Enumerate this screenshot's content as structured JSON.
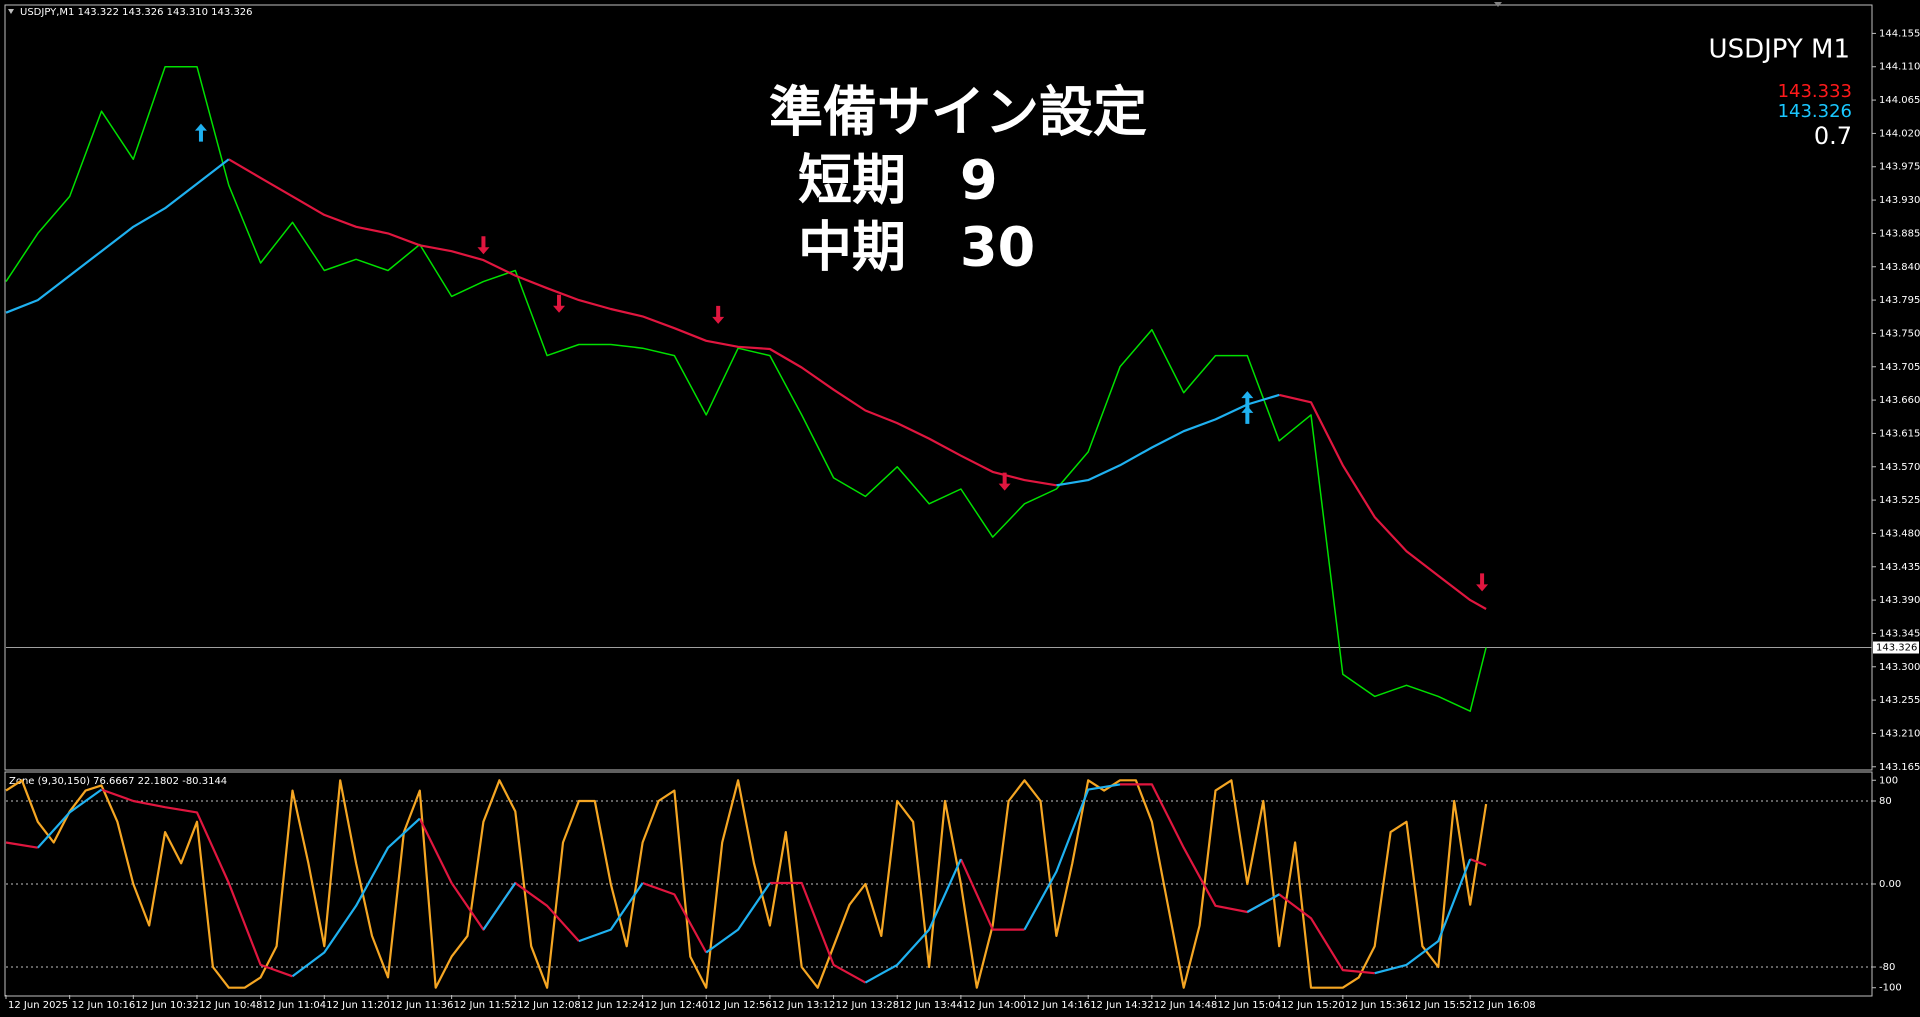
{
  "chart_data": [
    {
      "type": "line",
      "title": "USDJPY,M1 143.322 143.326 143.310 143.326",
      "annotations": [
        "準備サイン設定",
        "短期　9",
        "中期　30"
      ],
      "info_label": "USDJPY M1",
      "info_label_color": "#daa520",
      "info_values": [
        143.333,
        143.326,
        0.7
      ],
      "info_colors": [
        "#ff1a1a",
        "#19c8ff",
        "#ffffff"
      ],
      "price_line": 143.326,
      "xlim": [
        0,
        469
      ],
      "ylim": [
        143.162,
        144.192
      ],
      "yticks": [
        144.155,
        {
          "value": 144.11,
          "label": "144.110"
        },
        144.065,
        {
          "value": 144.02,
          "label": "144.020"
        },
        143.975,
        {
          "value": 143.93,
          "label": "143.930"
        },
        143.885,
        {
          "value": 143.84,
          "label": "143.840"
        },
        143.795,
        {
          "value": 143.75,
          "label": "143.750"
        },
        143.705,
        {
          "value": 143.66,
          "label": "143.660"
        },
        143.615,
        {
          "value": 143.57,
          "label": "143.570"
        },
        143.525,
        {
          "value": 143.48,
          "label": "143.480"
        },
        143.435,
        {
          "value": 143.39,
          "label": "143.390"
        },
        143.345,
        {
          "value": 143.3,
          "label": "143.300"
        },
        143.255,
        {
          "value": 143.21,
          "label": "143.210"
        },
        143.165
      ],
      "x": [
        0,
        8,
        16,
        24,
        32,
        40,
        48,
        56,
        64,
        72,
        80,
        88,
        96,
        104,
        112,
        120,
        128,
        136,
        144,
        152,
        160,
        168,
        176,
        184,
        192,
        200,
        208,
        216,
        224,
        232,
        240,
        248,
        256,
        264,
        272,
        280,
        288,
        296,
        304,
        312,
        320,
        328,
        336,
        344,
        352,
        360,
        368,
        372
      ],
      "series": [
        {
          "color": "#00e000",
          "values": [
            143.82,
            143.885,
            143.935,
            144.05,
            143.985,
            144.11,
            144.11,
            143.95,
            143.845,
            143.9,
            143.835,
            143.85,
            143.835,
            143.87,
            143.8,
            143.82,
            143.835,
            143.72,
            143.735,
            143.735,
            143.73,
            143.72,
            143.64,
            143.73,
            143.72,
            143.64,
            143.555,
            143.53,
            143.57,
            143.52,
            143.54,
            143.475,
            143.52,
            143.54,
            143.59,
            143.705,
            143.755,
            143.67,
            143.72,
            143.72,
            143.605,
            143.64,
            143.29,
            143.26,
            143.275,
            143.26,
            143.24,
            143.326
          ]
        },
        {
          "color": "#e0163f",
          "values": [
            null,
            null,
            null,
            null,
            null,
            null,
            null,
            143.985,
            143.96,
            143.935,
            143.91,
            143.894,
            143.885,
            143.869,
            143.861,
            143.849,
            143.828,
            143.811,
            143.795,
            143.783,
            143.773,
            143.757,
            143.74,
            143.732,
            143.729,
            143.704,
            143.674,
            143.646,
            143.629,
            143.608,
            143.585,
            143.563,
            143.552,
            143.545,
            null,
            null,
            null,
            null,
            null,
            null,
            143.667,
            143.657,
            143.572,
            143.502,
            143.456,
            143.423,
            143.39,
            143.378
          ]
        },
        {
          "color": "#1fb1f0",
          "values": [
            143.778,
            143.795,
            143.828,
            143.861,
            143.894,
            143.919,
            143.952,
            143.985,
            null,
            null,
            null,
            null,
            null,
            null,
            null,
            null,
            null,
            null,
            null,
            null,
            null,
            null,
            null,
            null,
            null,
            null,
            null,
            null,
            null,
            null,
            null,
            null,
            null,
            143.545,
            143.552,
            143.572,
            143.596,
            143.618,
            143.634,
            143.654,
            143.667,
            null,
            null,
            null,
            null,
            null,
            null,
            null
          ]
        },
        {
          "color": "#1fb1f0",
          "marker": "arrow-up",
          "x": [
            49,
            312,
            312
          ],
          "values": [
            144.021,
            143.66,
            143.64
          ]
        },
        {
          "color": "#e0163f",
          "marker": "arrow-down",
          "x": [
            120,
            139,
            179,
            251,
            371
          ],
          "values": [
            143.869,
            143.79,
            143.775,
            143.55,
            143.414
          ]
        }
      ]
    },
    {
      "type": "line",
      "title": "Zone (9,30,150) 76.6667 22.1802 -80.3144",
      "xlim": [
        0,
        469
      ],
      "ylim": [
        -107,
        107
      ],
      "yticks": [
        100,
        80,
        {
          "value": 0,
          "label": "0.00"
        },
        -80,
        -100
      ],
      "xticks": [
        {
          "value": 0,
          "label": "12 Jun 2025"
        },
        {
          "value": 16,
          "label": "12 Jun 10:16"
        },
        {
          "value": 32,
          "label": "12 Jun 10:32"
        },
        {
          "value": 48,
          "label": "12 Jun 10:48"
        },
        {
          "value": 64,
          "label": "12 Jun 11:04"
        },
        {
          "value": 80,
          "label": "12 Jun 11:20"
        },
        {
          "value": 96,
          "label": "12 Jun 11:36"
        },
        {
          "value": 112,
          "label": "12 Jun 11:52"
        },
        {
          "value": 128,
          "label": "12 Jun 12:08"
        },
        {
          "value": 144,
          "label": "12 Jun 12:24"
        },
        {
          "value": 160,
          "label": "12 Jun 12:40"
        },
        {
          "value": 176,
          "label": "12 Jun 12:56"
        },
        {
          "value": 192,
          "label": "12 Jun 13:12"
        },
        {
          "value": 208,
          "label": "12 Jun 13:28"
        },
        {
          "value": 224,
          "label": "12 Jun 13:44"
        },
        {
          "value": 240,
          "label": "12 Jun 14:00"
        },
        {
          "value": 256,
          "label": "12 Jun 14:16"
        },
        {
          "value": 272,
          "label": "12 Jun 14:32"
        },
        {
          "value": 288,
          "label": "12 Jun 14:48"
        },
        {
          "value": 304,
          "label": "12 Jun 15:04"
        },
        {
          "value": 320,
          "label": "12 Jun 15:20"
        },
        {
          "value": 336,
          "label": "12 Jun 15:36"
        },
        {
          "value": 352,
          "label": "12 Jun 15:52"
        },
        {
          "value": 368,
          "label": "12 Jun 16:08"
        }
      ],
      "x": [
        0,
        8,
        16,
        24,
        32,
        40,
        48,
        56,
        64,
        72,
        80,
        88,
        96,
        104,
        112,
        120,
        128,
        136,
        144,
        152,
        160,
        168,
        176,
        184,
        192,
        200,
        208,
        216,
        224,
        232,
        240,
        248,
        256,
        264,
        272,
        280,
        288,
        296,
        304,
        312,
        320,
        328,
        336,
        344,
        352,
        360,
        368,
        372
      ],
      "series": [
        {
          "color": "#f5a623",
          "x": [
            0,
            4,
            8,
            12,
            16,
            20,
            24,
            28,
            32,
            36,
            40,
            44,
            48,
            52,
            56,
            60,
            64,
            68,
            72,
            76,
            80,
            84,
            88,
            92,
            96,
            100,
            104,
            108,
            112,
            116,
            120,
            124,
            128,
            132,
            136,
            140,
            144,
            148,
            152,
            156,
            160,
            164,
            168,
            172,
            176,
            180,
            184,
            188,
            192,
            196,
            200,
            204,
            208,
            212,
            216,
            220,
            224,
            228,
            232,
            236,
            240,
            244,
            248,
            252,
            256,
            260,
            264,
            268,
            272,
            276,
            280,
            284,
            288,
            292,
            296,
            300,
            304,
            308,
            312,
            316,
            320,
            324,
            328,
            332,
            336,
            340,
            344,
            348,
            352,
            356,
            360,
            364,
            368,
            372
          ],
          "values": [
            90,
            100,
            60,
            40,
            70,
            90,
            95,
            60,
            0,
            -40,
            50,
            20,
            60,
            -80,
            -100,
            -100,
            -90,
            -60,
            90,
            20,
            -60,
            100,
            20,
            -50,
            -90,
            50,
            90,
            -100,
            -70,
            -50,
            60,
            100,
            70,
            -60,
            -100,
            40,
            80,
            80,
            0,
            -60,
            40,
            80,
            90,
            -70,
            -100,
            40,
            100,
            20,
            -40,
            50,
            -80,
            -100,
            -60,
            -20,
            0,
            -50,
            80,
            60,
            -80,
            80,
            0,
            -100,
            -40,
            80,
            100,
            80,
            -50,
            20,
            100,
            90,
            100,
            100,
            60,
            -20,
            -100,
            -40,
            90,
            100,
            0,
            80,
            -60,
            40,
            -100,
            -100,
            -100,
            -90,
            -60,
            50,
            60,
            -60,
            -80,
            80,
            -20,
            77
          ]
        },
        {
          "color": "#e0163f",
          "values": [
            40,
            35,
            null,
            91,
            80,
            74,
            69,
            1,
            -78,
            -89,
            null,
            null,
            null,
            63,
            1,
            -44,
            1,
            -21,
            -55,
            null,
            1,
            -10,
            -66,
            null,
            1,
            1,
            -78,
            -95,
            null,
            null,
            24,
            -44,
            -44,
            null,
            null,
            96,
            96,
            35,
            -21,
            -27,
            -10,
            -33,
            -83,
            -86,
            null,
            null,
            24,
            18
          ]
        },
        {
          "color": "#1fb1f0",
          "values": [
            null,
            35,
            69,
            91,
            null,
            null,
            null,
            null,
            null,
            -89,
            -66,
            -21,
            35,
            63,
            null,
            -44,
            1,
            null,
            -55,
            -44,
            1,
            null,
            -66,
            -44,
            1,
            null,
            null,
            -95,
            -78,
            -44,
            24,
            null,
            -44,
            12,
            91,
            96,
            null,
            null,
            null,
            -27,
            -10,
            null,
            null,
            -86,
            -78,
            -55,
            24,
            null
          ]
        }
      ]
    }
  ]
}
